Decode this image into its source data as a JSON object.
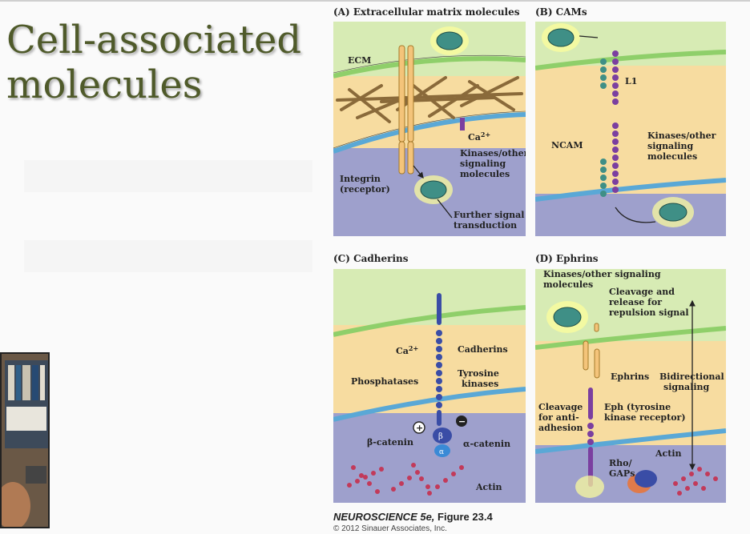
{
  "slide": {
    "title_line1": "Cell-associated",
    "title_line2": "molecules"
  },
  "panels": {
    "a": {
      "label": "(A) Extracellular matrix molecules",
      "ecm": "ECM",
      "ca": "Ca",
      "ca_sup": "2+",
      "kinases_1": "Kinases/other",
      "kinases_2": "signaling",
      "kinases_3": "molecules",
      "integrin_1": "Integrin",
      "integrin_2": "(receptor)",
      "further_1": "Further signal",
      "further_2": "transduction"
    },
    "b": {
      "label": "(B) CAMs",
      "l1": "L1",
      "ncam": "NCAM",
      "kinases_1": "Kinases/other",
      "kinases_2": "signaling",
      "kinases_3": "molecules"
    },
    "c": {
      "label": "(C) Cadherins",
      "ca": "Ca",
      "ca_sup": "2+",
      "cadherins": "Cadherins",
      "phosphatases": "Phosphatases",
      "tyrosine_1": "Tyrosine",
      "tyrosine_2": "kinases",
      "plus": "+",
      "minus": "−",
      "beta": "β",
      "alpha": "α",
      "beta_catenin": "β-catenin",
      "alpha_catenin": "α-catenin",
      "actin": "Actin"
    },
    "d": {
      "label": "(D) Ephrins",
      "kinases_1": "Kinases/other signaling",
      "kinases_2": "molecules",
      "cleavage_1": "Cleavage and",
      "cleavage_2": "release for",
      "cleavage_3": "repulsion signal",
      "ephrins": "Ephrins",
      "bidir_1": "Bidirectional",
      "bidir_2": "signaling",
      "antiadh_1": "Cleavage",
      "antiadh_2": "for anti-",
      "antiadh_3": "adhesion",
      "eph_1": "Eph (tyrosine",
      "eph_2": "kinase receptor)",
      "rho_1": "Rho/",
      "rho_2": "GAPs",
      "actin": "Actin"
    }
  },
  "caption": {
    "book": "NEUROSCIENCE 5e,",
    "figure": "Figure 23.4",
    "copyright": "© 2012 Sinauer Associates, Inc."
  },
  "colors": {
    "title": "#4f5a2a",
    "cell_green": "#d7ebb4",
    "cell_purple": "#9ea0cc",
    "extracellular": "#f7dca0",
    "membrane_green": "#8fcf6a",
    "membrane_blue": "#5aa8d6",
    "molecule_teal": "#3f8f86",
    "cadherin_blue": "#3a4da6"
  }
}
